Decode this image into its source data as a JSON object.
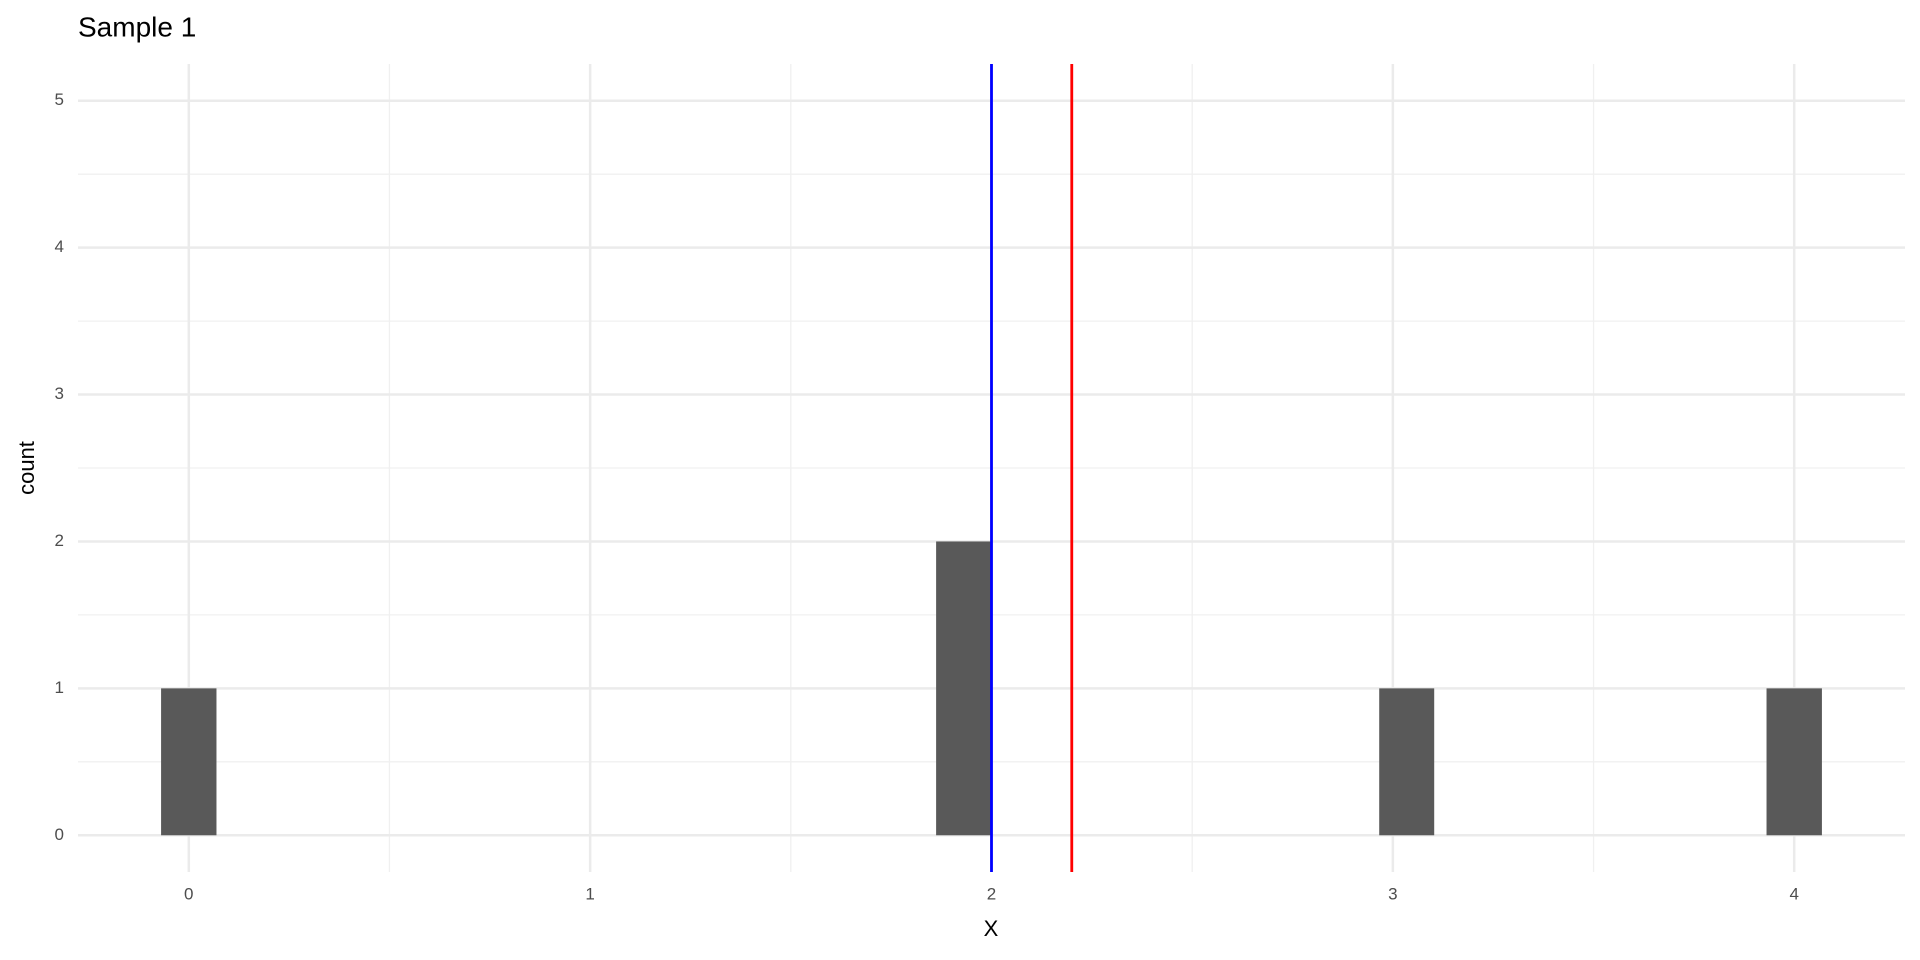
{
  "chart_data": {
    "type": "histogram",
    "title": "Sample 1",
    "x_label": "X",
    "y_label": "count",
    "bins": [
      -0.069,
      0.069,
      0.207,
      0.345,
      0.483,
      0.621,
      0.759,
      0.897,
      1.034,
      1.172,
      1.31,
      1.448,
      1.586,
      1.724,
      1.862,
      2.0,
      2.138,
      2.276,
      2.414,
      2.552,
      2.69,
      2.828,
      2.966,
      3.103,
      3.241,
      3.379,
      3.517,
      3.655,
      3.793,
      3.931,
      4.069
    ],
    "values": [
      1,
      0,
      0,
      0,
      0,
      0,
      0,
      0,
      0,
      0,
      0,
      0,
      0,
      0,
      2,
      0,
      0,
      0,
      0,
      0,
      0,
      0,
      1,
      0,
      0,
      0,
      0,
      0,
      0,
      1
    ],
    "color": "#595959",
    "vlines": [
      {
        "value": 2,
        "color": "#0000ff"
      },
      {
        "value": 2.2,
        "color": "#ff0000"
      }
    ],
    "xlim": [
      -0.276,
      4.276
    ],
    "xticks": [
      0,
      1,
      2,
      3,
      4
    ],
    "ylim": [
      -0.25,
      5.25
    ],
    "yticks": [
      0,
      1,
      2,
      3,
      4,
      5
    ],
    "grid": true
  }
}
